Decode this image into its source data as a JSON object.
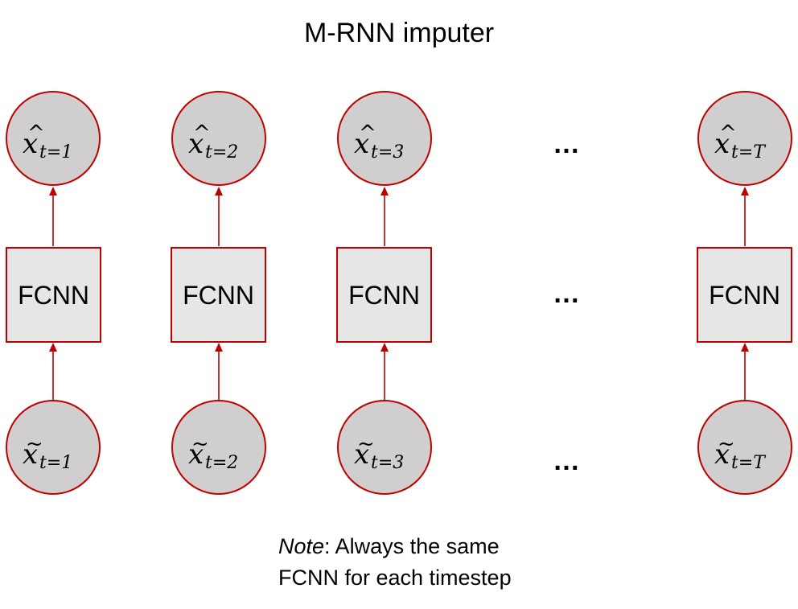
{
  "title": "M-RNN imputer",
  "colors": {
    "node_fill": "#d0cece",
    "box_fill": "#e7e6e6",
    "stroke": "#c00000"
  },
  "columns": [
    {
      "fcnn_label": "FCNN",
      "output": {
        "symbol": "x",
        "accent": "hat",
        "subscript": "t=1"
      },
      "input": {
        "symbol": "x",
        "accent": "tilde",
        "subscript": "t=1"
      }
    },
    {
      "fcnn_label": "FCNN",
      "output": {
        "symbol": "x",
        "accent": "hat",
        "subscript": "t=2"
      },
      "input": {
        "symbol": "x",
        "accent": "tilde",
        "subscript": "t=2"
      }
    },
    {
      "fcnn_label": "FCNN",
      "output": {
        "symbol": "x",
        "accent": "hat",
        "subscript": "t=3"
      },
      "input": {
        "symbol": "x",
        "accent": "tilde",
        "subscript": "t=3"
      }
    },
    {
      "fcnn_label": "FCNN",
      "output": {
        "symbol": "x",
        "accent": "hat",
        "subscript": "t=T"
      },
      "input": {
        "symbol": "x",
        "accent": "tilde",
        "subscript": "t=T"
      }
    }
  ],
  "ellipsis": "…",
  "note": {
    "emphasis": "Note",
    "line1_rest": ": Always the same",
    "line2": "FCNN for each timestep"
  }
}
